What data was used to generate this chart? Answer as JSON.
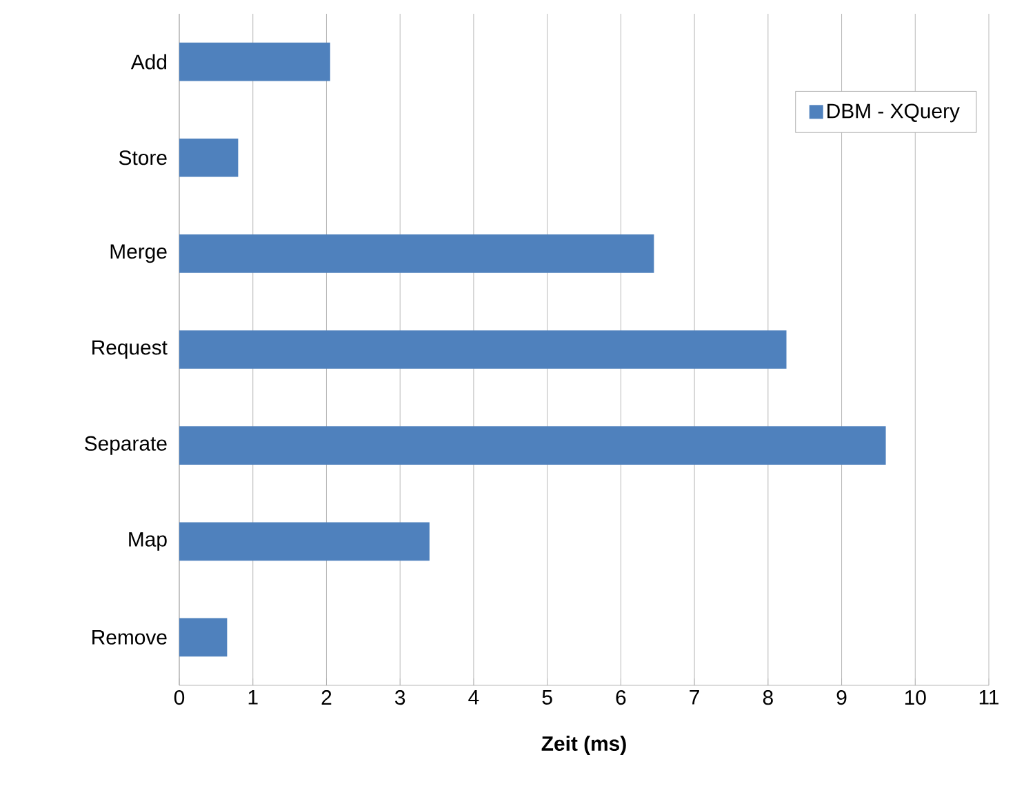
{
  "chart_data": {
    "type": "bar",
    "orientation": "horizontal",
    "xlabel": "Zeit (ms)",
    "categories": [
      "Add",
      "Store",
      "Merge",
      "Request",
      "Separate",
      "Map",
      "Remove"
    ],
    "series": [
      {
        "name": "DBM - XQuery",
        "color": "#4f81bd",
        "values": [
          2.05,
          0.8,
          6.45,
          8.25,
          9.6,
          3.4,
          0.65
        ]
      }
    ],
    "xlim": [
      0,
      11
    ],
    "xticks": [
      0,
      1,
      2,
      3,
      4,
      5,
      6,
      7,
      8,
      9,
      10,
      11
    ],
    "grid": "x",
    "legend": "top right"
  }
}
